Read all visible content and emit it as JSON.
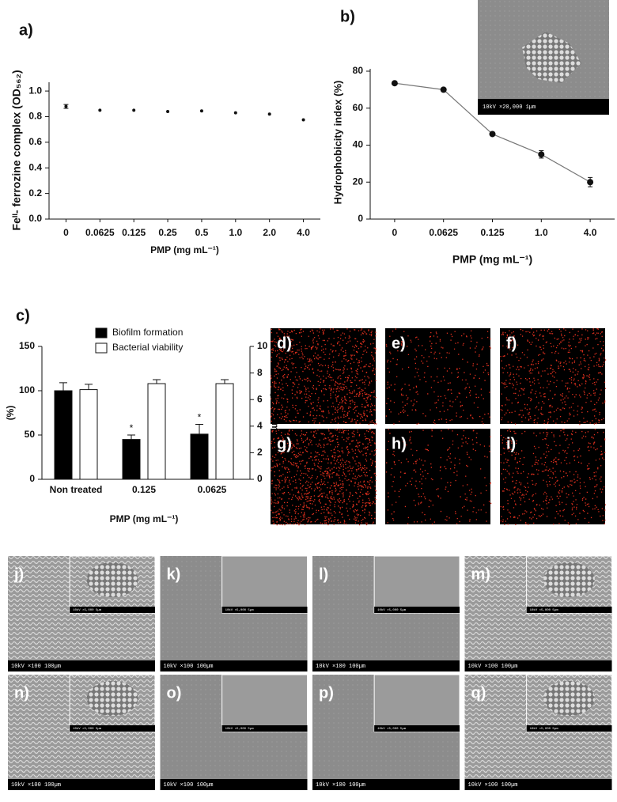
{
  "chart_data": [
    {
      "type": "scatter",
      "title": "a)",
      "ylabel": "Feᴵᴵ- ferrozine complex (OD₅₆₂)",
      "xlabel": "PMP (mg mL⁻¹)",
      "categories": [
        "0",
        "0.0625",
        "0.125",
        "0.25",
        "0.5",
        "1.0",
        "2.0",
        "4.0"
      ],
      "values": [
        0.88,
        0.85,
        0.85,
        0.84,
        0.845,
        0.83,
        0.82,
        0.775
      ],
      "errors": [
        0.015,
        0,
        0,
        0,
        0,
        0,
        0,
        0
      ],
      "color": "#111111",
      "ylim": [
        0,
        1.05
      ],
      "yticks": [
        {
          "value": 0,
          "label": "0.0"
        },
        0.2,
        0.4,
        0.6,
        0.8,
        {
          "value": 1,
          "label": "1.0"
        }
      ]
    },
    {
      "type": "line",
      "title": "b)",
      "ylabel": "Hydrophobicity index (%)",
      "xlabel": "PMP (mg mL⁻¹)",
      "categories": [
        "0",
        "0.0625",
        "0.125",
        "1.0",
        "4.0"
      ],
      "values": [
        73.5,
        70,
        46,
        35,
        20
      ],
      "errors": [
        0,
        0,
        0,
        2,
        2.5
      ],
      "color": "#111111",
      "ylim": [
        0,
        80
      ],
      "yticks": [
        0,
        20,
        40,
        60,
        80
      ],
      "inset_scale": "10kV ×20,000 1µm"
    },
    {
      "type": "bar",
      "title": "c)",
      "ylabel": "(%)",
      "y2label": "Log CFU mL⁻¹",
      "xlabel": "PMP (mg mL⁻¹)",
      "categories": [
        "Non treated",
        "0.125",
        "0.0625"
      ],
      "series": [
        {
          "name": "Biofilm formation",
          "color": "#000000",
          "values": [
            100,
            45,
            51
          ],
          "errors": [
            9,
            5,
            11
          ]
        },
        {
          "name": "Bacterial viability",
          "color": "#ffffff",
          "values": [
            6.75,
            7.2,
            7.2
          ],
          "errors": [
            0.4,
            0.3,
            0.3
          ],
          "axis": "y2"
        }
      ],
      "annotations": [
        {
          "text": "*",
          "category": "0.125"
        },
        {
          "text": "*",
          "category": "0.0625"
        }
      ],
      "ylim": [
        0,
        150
      ],
      "yticks": [
        0,
        50,
        100,
        150
      ],
      "y2lim": [
        0,
        10
      ],
      "y2ticks": [
        0,
        2,
        4,
        6,
        8,
        10
      ],
      "legend": "top-left"
    }
  ],
  "fluorescence_panels": [
    "d)",
    "e)",
    "f)",
    "g)",
    "h)",
    "i)"
  ],
  "sem_panels": [
    {
      "label": "j)",
      "scale": "10kV ×100 100µm",
      "inset_scale": "10kV ×5,000 5µm"
    },
    {
      "label": "k)",
      "scale": "10kV ×100 100µm",
      "inset_scale": "10kV ×5,000 5µm"
    },
    {
      "label": "l)",
      "scale": "10kV ×100 100µm",
      "inset_scale": "10kV ×5,000 5µm"
    },
    {
      "label": "m)",
      "scale": "10kV ×100 100µm",
      "inset_scale": "10kV ×5,000 5µm"
    },
    {
      "label": "n)",
      "scale": "10kV ×100 100µm",
      "inset_scale": "10kV ×5,000 5µm"
    },
    {
      "label": "o)",
      "scale": "10kV ×100 100µm",
      "inset_scale": "10kV ×5,000 5µm"
    },
    {
      "label": "p)",
      "scale": "10kV ×100 100µm",
      "inset_scale": "10kV ×5,000 5µm"
    },
    {
      "label": "q)",
      "scale": "10kV ×100 100µm",
      "inset_scale": "10kV ×5,000 5µm"
    }
  ]
}
